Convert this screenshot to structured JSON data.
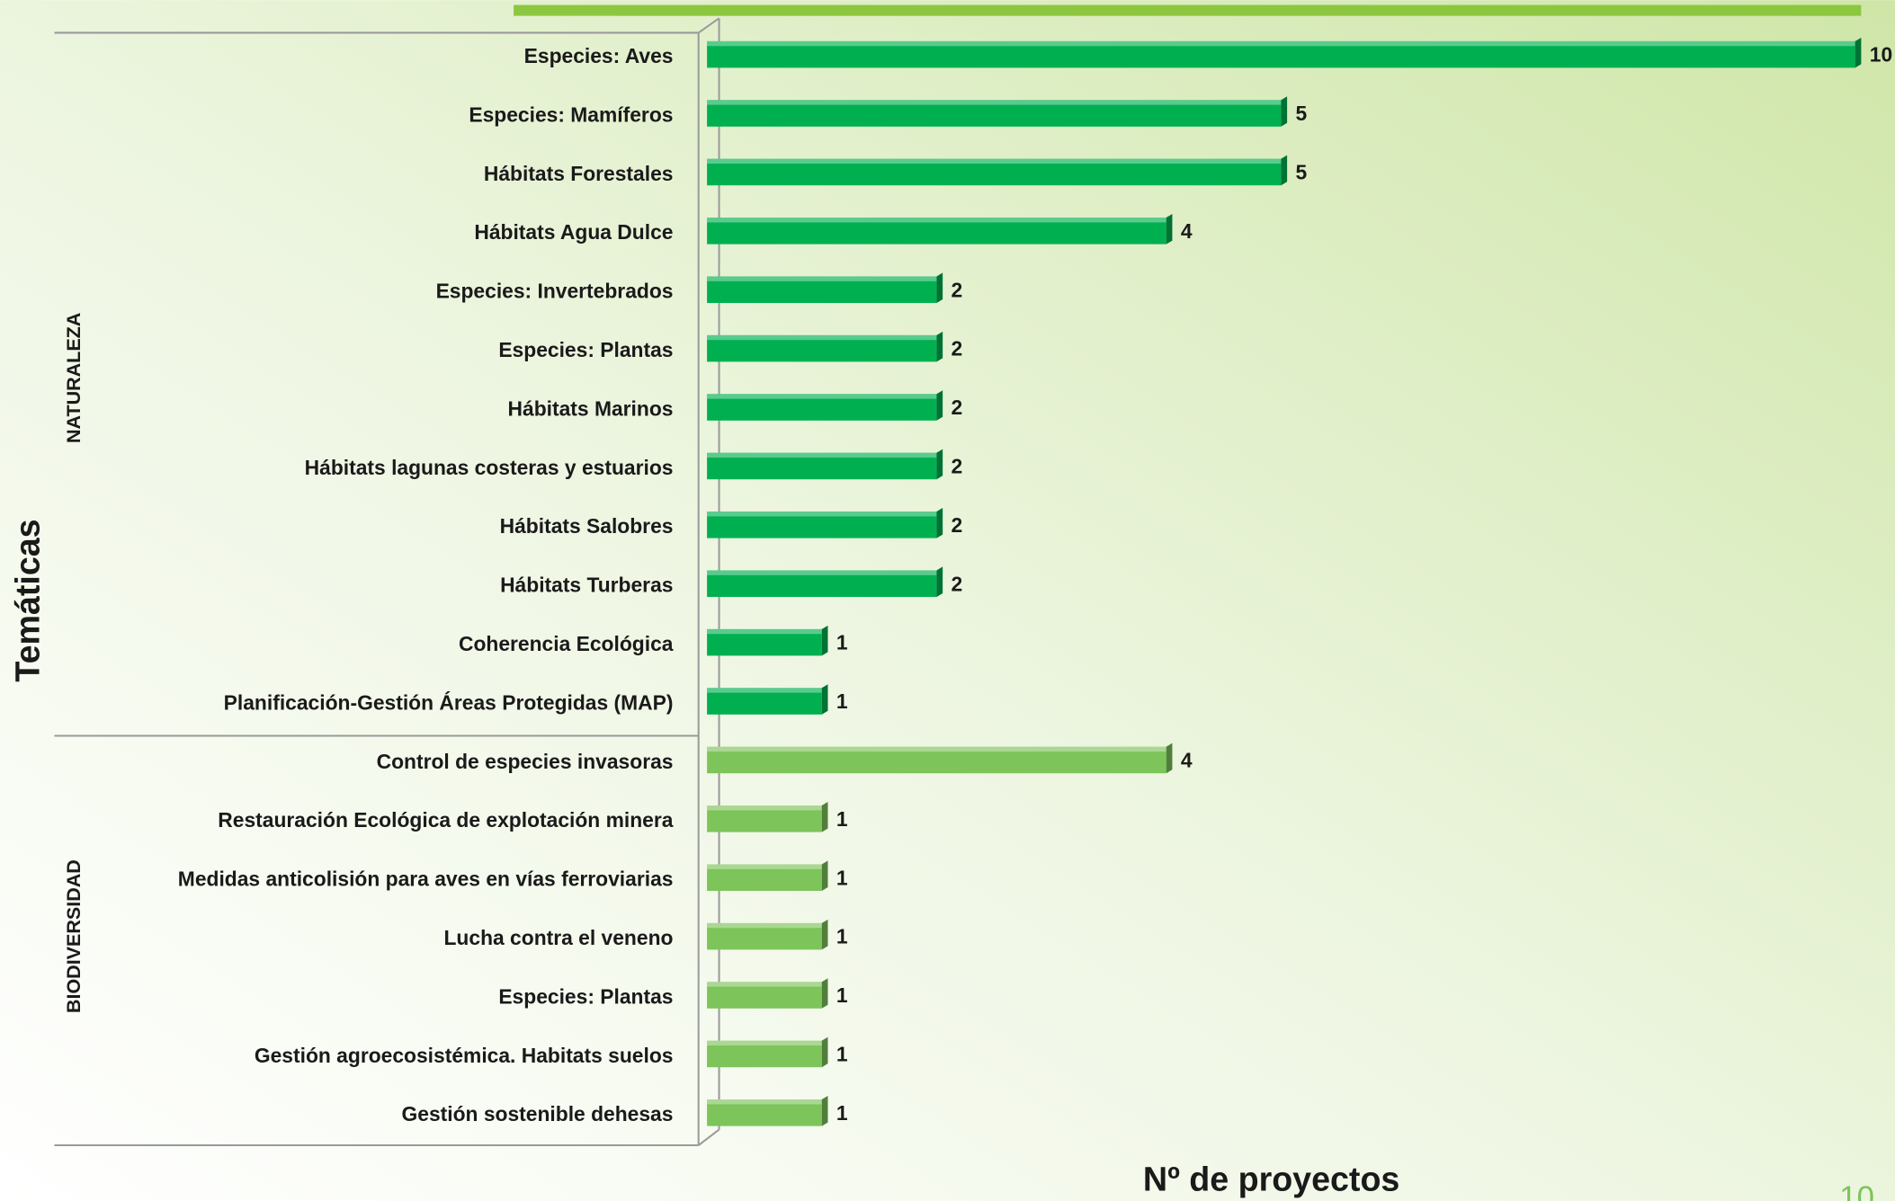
{
  "chart_data": {
    "type": "bar",
    "orientation": "horizontal",
    "y_label": "Temáticas",
    "x_label": "Nº de proyectos",
    "xlim": [
      0,
      10
    ],
    "groups": [
      {
        "name": "NATURALEZA",
        "color": "#00b050",
        "categories": [
          "Especies: Aves",
          "Especies: Mamíferos",
          "Hábitats Forestales",
          "Hábitats Agua Dulce",
          "Especies: Invertebrados",
          "Especies: Plantas",
          "Hábitats Marinos",
          "Hábitats lagunas costeras y estuarios",
          "Hábitats Salobres",
          "Hábitats Turberas",
          "Coherencia Ecológica",
          "Planificación-Gestión Áreas Protegidas (MAP)"
        ],
        "values": [
          10,
          5,
          5,
          4,
          2,
          2,
          2,
          2,
          2,
          2,
          1,
          1
        ]
      },
      {
        "name": "BIODIVERSIDAD",
        "color": "#7dc45a",
        "categories": [
          "Control de especies invasoras",
          "Restauración Ecológica de explotación minera",
          "Medidas anticolisión  para aves en vías ferroviarias",
          "Lucha contra el veneno",
          "Especies: Plantas",
          "Gestión agroecosistémica. Habitats suelos",
          "Gestión sostenible dehesas"
        ],
        "values": [
          4,
          1,
          1,
          1,
          1,
          1,
          1
        ]
      }
    ]
  },
  "page_number": "10"
}
